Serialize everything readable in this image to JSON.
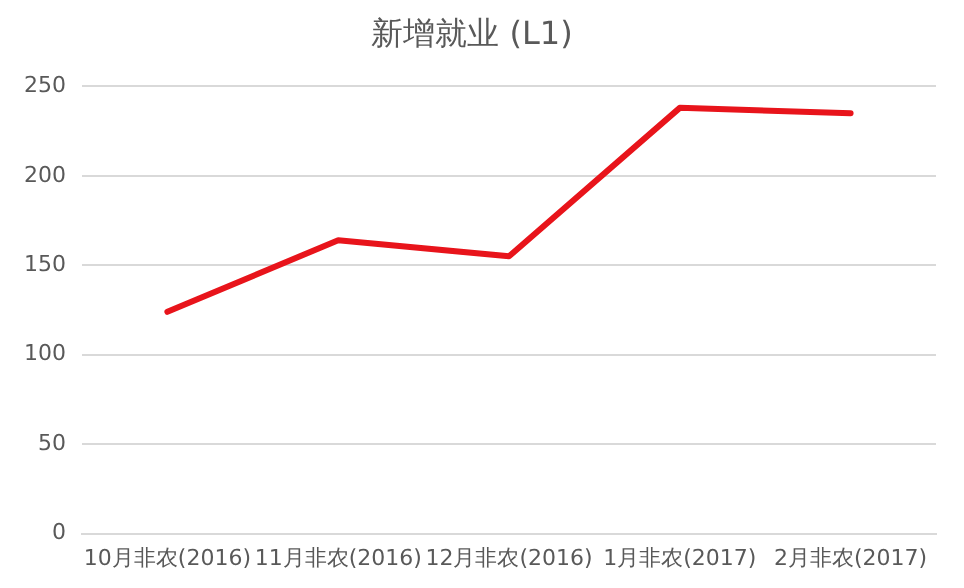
{
  "chart_data": {
    "type": "line",
    "title": "新增就业 (L1)",
    "categories": [
      "10月非农(2016)",
      "11月非农(2016)",
      "12月非农(2016)",
      "1月非农(2017)",
      "2月非农(2017)"
    ],
    "series": [
      {
        "color": "#e8141b",
        "values": [
          124,
          164,
          155,
          238,
          235
        ]
      }
    ],
    "ylim": [
      0,
      250
    ],
    "yticks": [
      0,
      50,
      100,
      150,
      200,
      250
    ],
    "grid": "y",
    "legend": false,
    "marker": "none",
    "line_style": "solid"
  }
}
